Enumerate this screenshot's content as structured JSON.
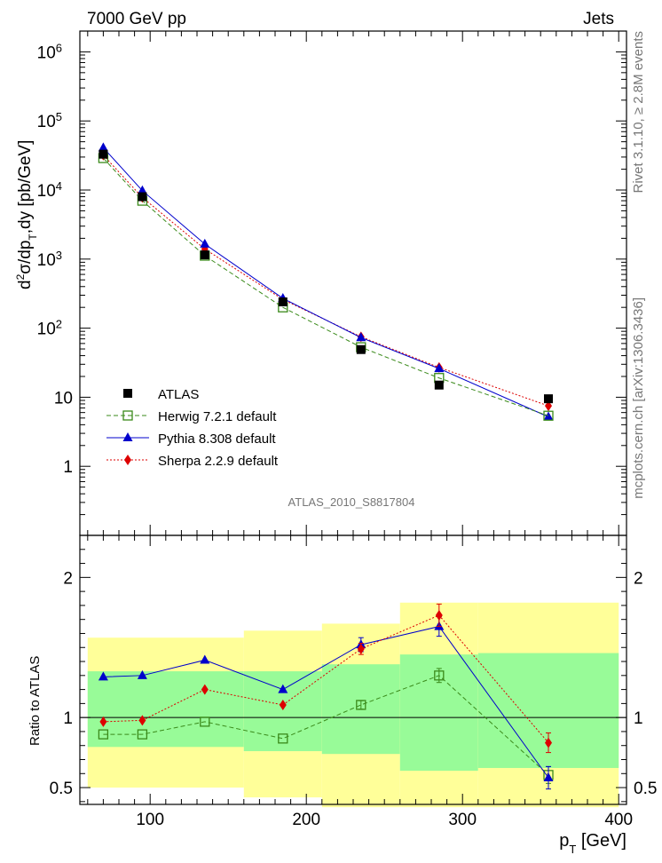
{
  "header": {
    "left": "7000 GeV pp",
    "right": "Jets",
    "side_top": "Rivet 3.1.10, ≥ 2.8M events",
    "side_bottom": "mcplots.cern.ch [arXiv:1306.3436]",
    "analysis_id": "ATLAS_2010_S8817804"
  },
  "chart_data": [
    {
      "type": "scatter",
      "panel": "main",
      "ylabel": "d²σ/dp_T,dy [pb/GeV]",
      "yscale": "log",
      "xlim": [
        55,
        405
      ],
      "ylim": [
        0.1,
        2000000
      ],
      "yticks": [
        {
          "value": 1,
          "label": "1"
        },
        {
          "value": 10,
          "label": "10"
        },
        {
          "value": 100,
          "label": "10",
          "sup": "2"
        },
        {
          "value": 1000,
          "label": "10",
          "sup": "3"
        },
        {
          "value": 10000,
          "label": "10",
          "sup": "4"
        },
        {
          "value": 100000,
          "label": "10",
          "sup": "5"
        },
        {
          "value": 1000000,
          "label": "10",
          "sup": "6"
        }
      ],
      "legend_position": "bottom-left",
      "x": [
        70,
        95,
        135,
        185,
        235,
        285,
        355
      ],
      "series": [
        {
          "name": "ATLAS",
          "color": "#000000",
          "marker": "square-filled",
          "line": "none",
          "values": [
            33000,
            8000,
            1150,
            240,
            49,
            15,
            9.5
          ]
        },
        {
          "name": "Herwig 7.2.1 default",
          "color": "#3a8a1a",
          "marker": "square-open",
          "line": "dashed",
          "values": [
            29000,
            7000,
            1120,
            200,
            53,
            19,
            5.4
          ]
        },
        {
          "name": "Pythia 8.308 default",
          "color": "#0000cc",
          "marker": "triangle",
          "line": "solid",
          "values": [
            41000,
            9800,
            1650,
            270,
            73,
            26,
            5.2
          ]
        },
        {
          "name": "Sherpa 2.2.9 default",
          "color": "#dd0000",
          "marker": "diamond",
          "line": "dotted",
          "values": [
            32000,
            7800,
            1400,
            260,
            75,
            27,
            7.5
          ]
        }
      ]
    },
    {
      "type": "line",
      "panel": "ratio",
      "ylabel": "Ratio to ATLAS",
      "xlabel": "p_T [GeV]",
      "xlim": [
        55,
        405
      ],
      "ylim": [
        0.38,
        2.3
      ],
      "yticks": [
        0.5,
        1,
        2
      ],
      "xticks": [
        100,
        200,
        300,
        400
      ],
      "x": [
        70,
        95,
        135,
        185,
        235,
        285,
        355
      ],
      "bands": {
        "edges": [
          60,
          160,
          210,
          260,
          310,
          400
        ],
        "green": {
          "color": "#98fb98",
          "low": [
            0.79,
            0.76,
            0.74,
            0.62,
            0.64
          ],
          "high": [
            1.33,
            1.33,
            1.38,
            1.45,
            1.46
          ]
        },
        "yellow": {
          "color": "#ffff99",
          "low": [
            0.5,
            0.43,
            0.36,
            0.36,
            0.36
          ],
          "high": [
            1.57,
            1.62,
            1.67,
            1.82,
            1.82
          ]
        }
      },
      "series": [
        {
          "name": "Herwig 7.2.1 default",
          "color": "#3a8a1a",
          "marker": "square-open",
          "line": "dashed",
          "values": [
            0.88,
            0.88,
            0.97,
            0.85,
            1.09,
            1.3,
            0.59
          ],
          "err": [
            0,
            0,
            0,
            0,
            0.03,
            0.05,
            0.06
          ]
        },
        {
          "name": "Pythia 8.308 default",
          "color": "#0000cc",
          "marker": "triangle",
          "line": "solid",
          "values": [
            1.29,
            1.3,
            1.41,
            1.2,
            1.52,
            1.65,
            0.57
          ],
          "err": [
            0,
            0,
            0,
            0,
            0.05,
            0.07,
            0.08
          ]
        },
        {
          "name": "Sherpa 2.2.9 default",
          "color": "#dd0000",
          "marker": "diamond",
          "line": "dotted",
          "values": [
            0.97,
            0.98,
            1.2,
            1.09,
            1.49,
            1.73,
            0.82
          ],
          "err": [
            0,
            0,
            0,
            0,
            0.04,
            0.08,
            0.07
          ]
        }
      ]
    }
  ]
}
